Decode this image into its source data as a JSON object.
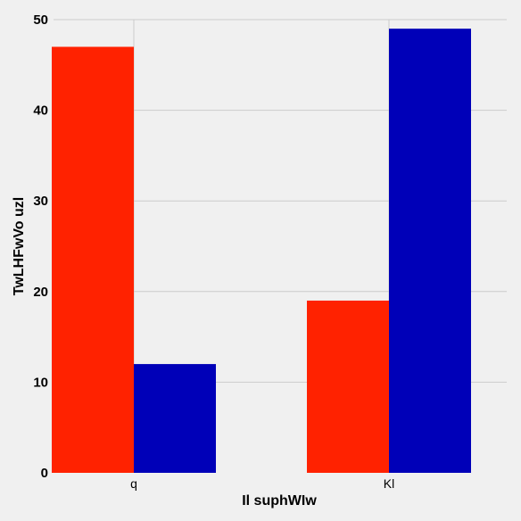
{
  "chart_data": {
    "type": "bar",
    "title": "",
    "xlabel": "Il suphWIw",
    "ylabel": "TwLHFwVo uzl",
    "categories": [
      "q",
      "Kl"
    ],
    "series": [
      {
        "values": [
          47,
          19
        ],
        "color": "#ff2200"
      },
      {
        "values": [
          12,
          49
        ],
        "color": "#0000b8"
      }
    ],
    "ylim": [
      0,
      50
    ],
    "yticks": [
      0,
      10,
      20,
      30,
      40,
      50
    ],
    "grid": true,
    "background": "#f0f0f0",
    "grid_color": "#cbcbcb"
  }
}
